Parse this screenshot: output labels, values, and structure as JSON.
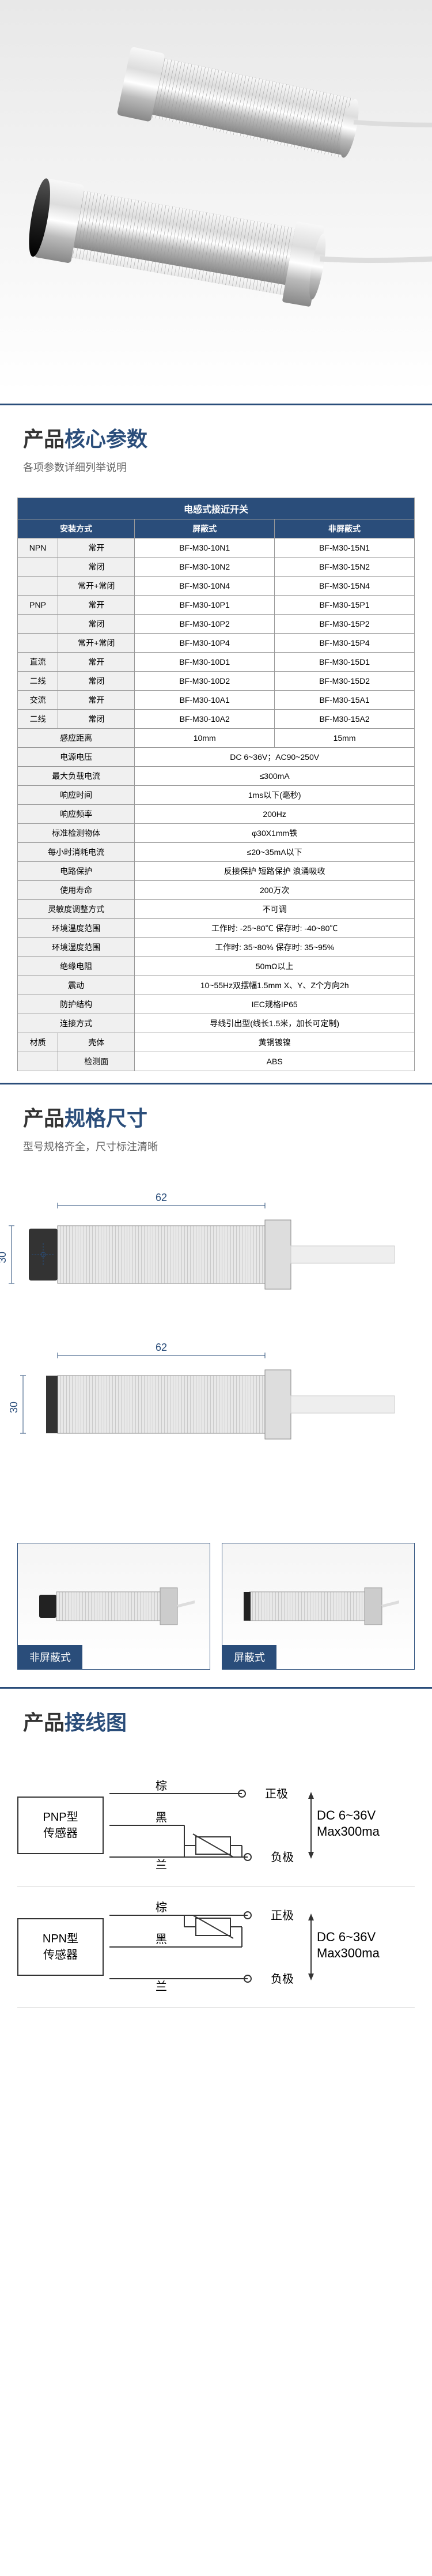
{
  "sections": {
    "params": {
      "title_pre": "产品",
      "title_accent": "核心参数",
      "sub": "各项参数详细列举说明"
    },
    "dims": {
      "title_pre": "产品",
      "title_accent": "规格尺寸",
      "sub": "型号规格齐全，尺寸标注清晰"
    },
    "wiring": {
      "title_pre": "产品",
      "title_accent": "接线图",
      "sub": ""
    }
  },
  "table": {
    "main_header": "电感式接近开关",
    "col_headers": {
      "install": "安装方式",
      "shielded": "屏蔽式",
      "unshielded": "非屏蔽式"
    },
    "typed_rows": [
      {
        "g": "NPN",
        "sub": "常开",
        "s": "BF-M30-10N1",
        "u": "BF-M30-15N1"
      },
      {
        "g": "",
        "sub": "常闭",
        "s": "BF-M30-10N2",
        "u": "BF-M30-15N2"
      },
      {
        "g": "",
        "sub": "常开+常闭",
        "s": "BF-M30-10N4",
        "u": "BF-M30-15N4"
      },
      {
        "g": "PNP",
        "sub": "常开",
        "s": "BF-M30-10P1",
        "u": "BF-M30-15P1"
      },
      {
        "g": "",
        "sub": "常闭",
        "s": "BF-M30-10P2",
        "u": "BF-M30-15P2"
      },
      {
        "g": "",
        "sub": "常开+常闭",
        "s": "BF-M30-10P4",
        "u": "BF-M30-15P4"
      },
      {
        "g": "直流",
        "sub": "常开",
        "s": "BF-M30-10D1",
        "u": "BF-M30-15D1"
      },
      {
        "g": "二线",
        "sub": "常闭",
        "s": "BF-M30-10D2",
        "u": "BF-M30-15D2"
      },
      {
        "g": "交流",
        "sub": "常开",
        "s": "BF-M30-10A1",
        "u": "BF-M30-15A1"
      },
      {
        "g": "二线",
        "sub": "常闭",
        "s": "BF-M30-10A2",
        "u": "BF-M30-15A2"
      }
    ],
    "spec_rows": [
      {
        "l": "感应距离",
        "s": "10mm",
        "u": "15mm"
      },
      {
        "l": "电源电压",
        "v": "DC 6~36V；AC90~250V"
      },
      {
        "l": "最大负载电流",
        "v": "≤300mA"
      },
      {
        "l": "响应时间",
        "v": "1ms以下(毫秒)"
      },
      {
        "l": "响应频率",
        "v": "200Hz"
      },
      {
        "l": "标准检测物体",
        "v": "φ30X1mm铁"
      },
      {
        "l": "每小时消耗电流",
        "v": "≤20~35mA以下"
      },
      {
        "l": "电路保护",
        "v": "反接保护 短路保护 浪涌吸收"
      },
      {
        "l": "使用寿命",
        "v": "200万次"
      },
      {
        "l": "灵敏度调整方式",
        "v": "不可调"
      },
      {
        "l": "环境温度范围",
        "v": "工作时: -25~80℃  保存时: -40~80℃"
      },
      {
        "l": "环境湿度范围",
        "v": "工作时: 35~80%  保存时: 35~95%"
      },
      {
        "l": "绝缘电阻",
        "v": "50mΩ以上"
      },
      {
        "l": "震动",
        "v": "10~55Hz双摆幅1.5mm X、Y、Z个方向2h"
      },
      {
        "l": "防护结构",
        "v": "IEC规格IP65"
      },
      {
        "l": "连接方式",
        "v": "导线引出型(线长1.5米，加长可定制)"
      },
      {
        "l": "材质.壳体",
        "v": "黄铜镀镍",
        "prefix": "材质",
        "suffix": "壳体"
      },
      {
        "l": "材质.检测面",
        "v": "ABS",
        "prefix": "",
        "suffix": "检测面"
      }
    ]
  },
  "dimensions": {
    "length": "62",
    "diameter": "30"
  },
  "type_labels": {
    "unshielded": "非屏蔽式",
    "shielded": "屏蔽式"
  },
  "wiring": {
    "pnp": {
      "label1": "PNP型",
      "label2": "传感器"
    },
    "npn": {
      "label1": "NPN型",
      "label2": "传感器"
    },
    "wires": {
      "brown": "棕",
      "black": "黑",
      "blue": "兰"
    },
    "terms": {
      "pos": "正极",
      "neg": "负极",
      "dc": "DC  6~36V",
      "max": "Max300ma"
    }
  },
  "colors": {
    "primary": "#2a4d7a",
    "metal1": "#f0f0f0",
    "metal2": "#aaa",
    "metal3": "#666"
  }
}
